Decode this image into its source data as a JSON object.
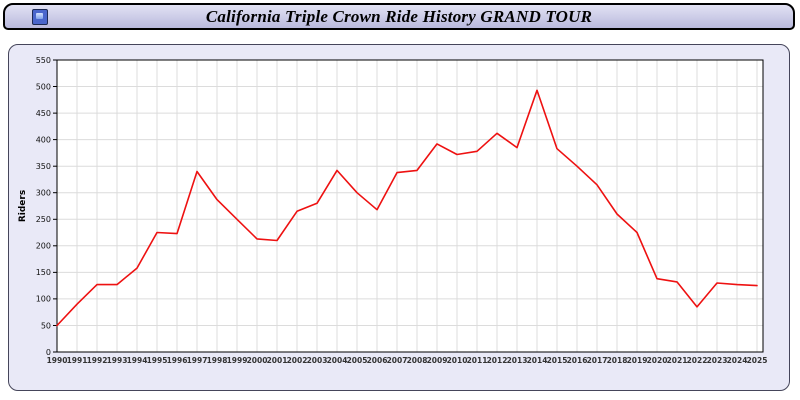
{
  "title": "California Triple Crown Ride History GRAND TOUR",
  "title_icon": "image-icon",
  "theme": {
    "titlebar_bg": "#c8c8e6",
    "panel_bg": "#e9e9f7",
    "plot_bg": "#ffffff",
    "grid_color": "#dcdcdc",
    "axis_color": "#000000",
    "line_color": "#ee1111"
  },
  "chart_data": {
    "type": "line",
    "title": "California Triple Crown Ride History GRAND TOUR",
    "xlabel": "",
    "ylabel": "Riders",
    "ylim": [
      0,
      550
    ],
    "ytick_step": 50,
    "grid": true,
    "legend_position": "none",
    "line_color": "#ee1111",
    "categories": [
      "1990",
      "1991",
      "1992",
      "1993",
      "1994",
      "1995",
      "1996",
      "1997",
      "1998",
      "1999",
      "2000",
      "2001",
      "2002",
      "2003",
      "2004",
      "2005",
      "2006",
      "2007",
      "2008",
      "2009",
      "2010",
      "2011",
      "2012",
      "2013",
      "2014",
      "2015",
      "2016",
      "2017",
      "2018",
      "2019",
      "2020",
      "2021",
      "2022",
      "2023",
      "2024",
      "2025"
    ],
    "values": [
      50,
      90,
      127,
      127,
      158,
      225,
      223,
      340,
      287,
      250,
      213,
      210,
      265,
      280,
      342,
      300,
      268,
      338,
      342,
      392,
      372,
      378,
      412,
      385,
      493,
      383,
      350,
      315,
      260,
      225,
      138,
      132,
      85,
      130,
      127,
      125
    ]
  }
}
